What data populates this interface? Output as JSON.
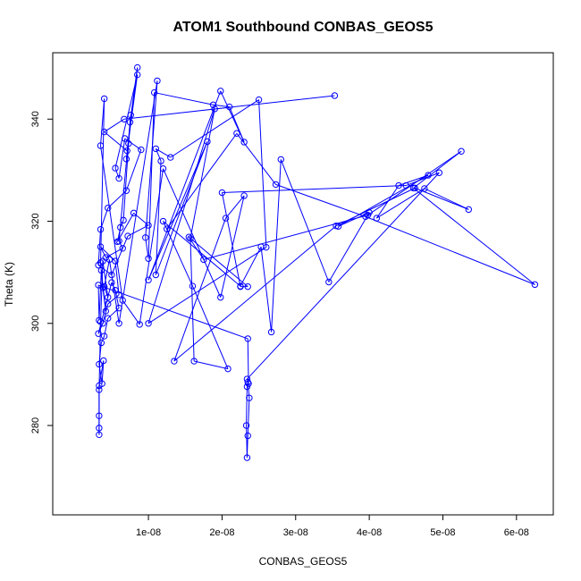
{
  "chart_data": {
    "type": "line",
    "title": "ATOM1 Southbound CONBAS_GEOS5",
    "xlabel": "CONBAS_GEOS5",
    "ylabel": "Theta (K)",
    "xlim": [
      -3e-09,
      6.5e-08
    ],
    "ylim": [
      262.5,
      353.0
    ],
    "xticks": [
      1e-08,
      2e-08,
      3e-08,
      4e-08,
      5e-08,
      6e-08
    ],
    "xtick_labels": [
      "1e-08",
      "2e-08",
      "3e-08",
      "4e-08",
      "5e-08",
      "6e-08"
    ],
    "yticks": [
      280,
      300,
      320,
      340
    ],
    "ytick_labels": [
      "280",
      "300",
      "320",
      "340"
    ],
    "grid": false,
    "legend": "none",
    "color": "#0000ff",
    "marker": "open-circle",
    "series": [
      {
        "x": [
          3.53e-08,
          6.7e-09,
          4e-09,
          7.1e-09,
          8.5e-09,
          5.5e-09,
          6e-09,
          6.8e-09,
          9e-09,
          7e-09,
          4.5e-09,
          3.5e-09,
          3.2e-09,
          5e-09,
          7.2e-09,
          1e-08,
          8e-09,
          5.8e-09,
          6.2e-09,
          6.6e-09,
          7.5e-09,
          8.5e-09,
          7e-09,
          7.3e-09,
          7.6e-09,
          6e-09,
          6.5e-09,
          4.2e-09,
          3.5e-09,
          5.5e-09,
          6e-09,
          4.5e-09,
          3.8e-09,
          3.2e-09,
          5e-09,
          5.5e-09,
          6e-09,
          4.5e-09,
          4e-09,
          3.6e-09,
          3.3e-09,
          3.7e-09,
          3.9e-09,
          3.3e-09,
          3.3e-09,
          3.3e-09,
          3.3e-09,
          3.3e-09,
          3.5e-09,
          3.8e-09,
          4.5e-09,
          4e-09,
          4.7e-09,
          6e-09,
          1.12e-08,
          9.6e-09,
          1e-08,
          1.08e-08,
          1.88e-08,
          2.1e-08,
          2.3e-08,
          1.98e-08,
          1e-08,
          1.8e-08,
          1.1e-08,
          1.17e-08,
          1.1e-08,
          1.3e-08,
          2.5e-08,
          2.6e-08,
          1e-08,
          1.9e-08,
          1.57e-08,
          1.62e-08,
          2.08e-08,
          1.6e-08,
          1.2e-08,
          2.25e-08,
          2.53e-08,
          2.67e-08,
          2.8e-08,
          3.45e-08,
          4e-08,
          3.58e-08,
          4.8e-08,
          4.4e-08,
          4.1e-08,
          4.75e-08,
          5.35e-08,
          4.62e-08,
          3.55e-08,
          1.35e-08,
          2.05e-08,
          2.3e-08,
          1.98e-08,
          1.2e-08,
          8.8e-09,
          6.5e-09,
          3.5e-09,
          4e-09,
          3.5e-09,
          3.8e-09,
          4.2e-09,
          3.6e-09,
          3.3e-09,
          3.2e-09,
          2.35e-08,
          2.36e-08,
          2.34e-08,
          2.33e-08,
          2.34e-08,
          2.35e-08,
          2.37e-08,
          2.35e-08,
          2.34e-08,
          4.95e-08,
          4.5e-08,
          2e-08,
          2.25e-08,
          2.35e-08,
          1.55e-08,
          1.75e-08,
          3.98e-08,
          5.25e-08,
          4.6e-08,
          6.25e-08,
          3.95e-08,
          2.73e-08,
          2.2e-08,
          1.25e-08
        ],
        "y": [
          344.6,
          340.0,
          337.5,
          333.8,
          348.7,
          330.4,
          328.4,
          336.2,
          334.0,
          326.0,
          322.6,
          318.4,
          311.4,
          309.5,
          317.1,
          319.2,
          321.6,
          316.0,
          318.8,
          320.2,
          339.4,
          350.1,
          332.2,
          335.2,
          340.8,
          316.1,
          314.7,
          312.9,
          315.0,
          312.2,
          305.6,
          303.8,
          300.0,
          298.0,
          308.0,
          306.5,
          303.0,
          301.0,
          297.5,
          296.2,
          292.0,
          288.2,
          292.7,
          287.8,
          281.9,
          279.5,
          278.2,
          287.0,
          300.3,
          312.2,
          305.1,
          307.2,
          312.5,
          300.0,
          347.5,
          316.8,
          312.7,
          345.2,
          342.8,
          342.4,
          335.5,
          345.5,
          308.5,
          335.6,
          309.5,
          331.8,
          334.2,
          332.5,
          343.8,
          314.9,
          300.0,
          342.0,
          316.6,
          292.6,
          291.1,
          307.3,
          320.0,
          307.3,
          315.0,
          298.3,
          332.1,
          308.1,
          321.7,
          319.0,
          329.0,
          327.0,
          320.6,
          326.4,
          322.3,
          326.5,
          319.1,
          292.6,
          320.6,
          325.0,
          305.1,
          330.3,
          299.8,
          304.5,
          334.8,
          344.0,
          311.9,
          307.0,
          302.4,
          310.4,
          300.6,
          307.5,
          297.0,
          288.2,
          287.6,
          280.0,
          273.7,
          278.0,
          285.4,
          288.5,
          289.1,
          329.5,
          327.0,
          325.6,
          307.2,
          307.2,
          316.9,
          312.5,
          321.2,
          333.7,
          326.5,
          307.6,
          320.9,
          327.2,
          337.2,
          318.5
        ]
      }
    ]
  }
}
